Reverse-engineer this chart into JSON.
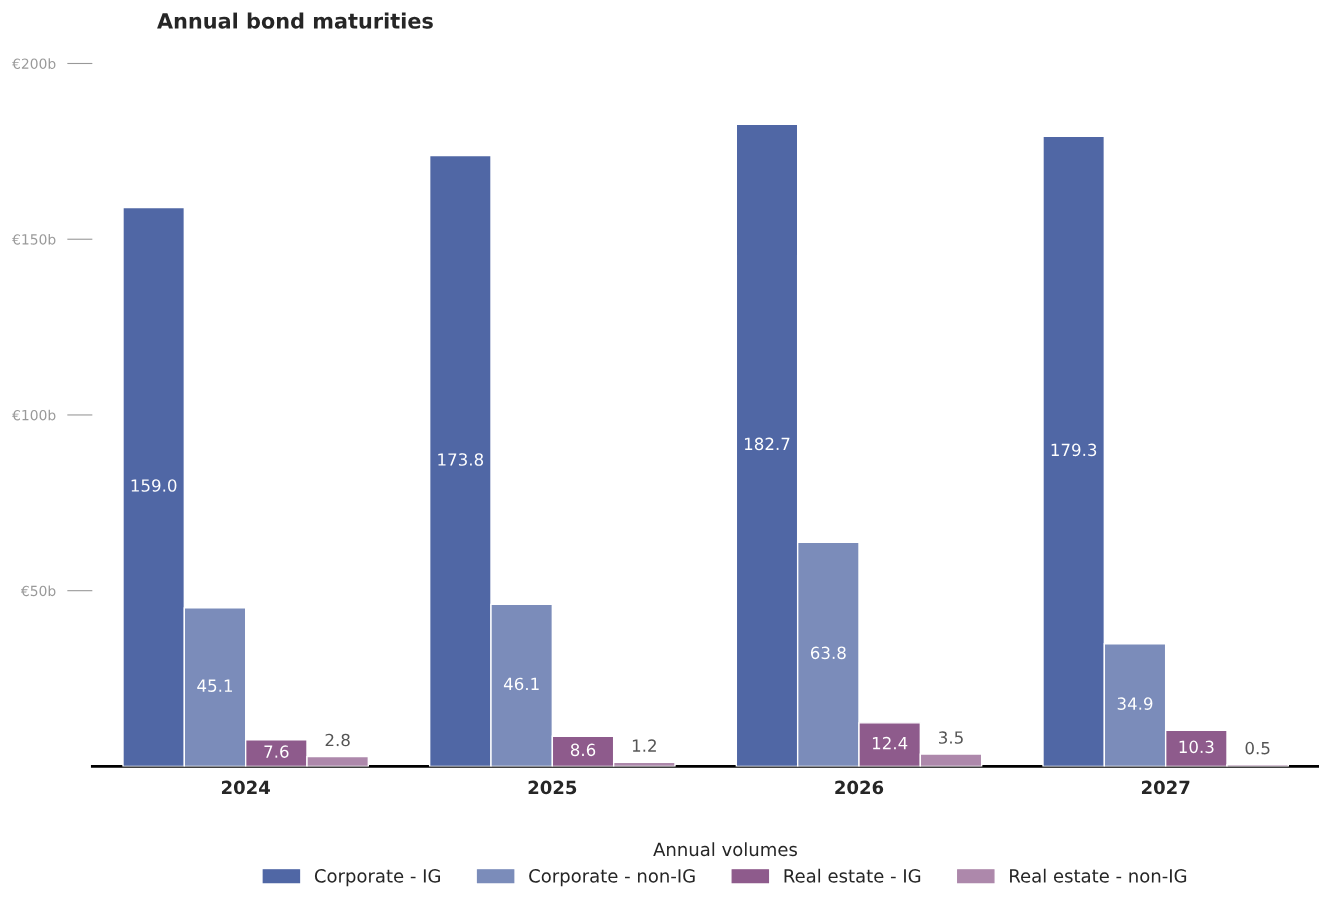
{
  "chart_data": {
    "type": "bar",
    "title": "Annual bond maturities",
    "legend_title": "Annual volumes",
    "categories": [
      "2024",
      "2025",
      "2026",
      "2027"
    ],
    "series": [
      {
        "name": "Corporate - IG",
        "color": "#5067a5",
        "values": [
          159.0,
          173.8,
          182.7,
          179.3
        ],
        "value_labels": [
          "159.0",
          "173.8",
          "182.7",
          "179.3"
        ]
      },
      {
        "name": "Corporate - non-IG",
        "color": "#7b8cba",
        "values": [
          45.1,
          46.1,
          63.8,
          34.9
        ],
        "value_labels": [
          "45.1",
          "46.1",
          "63.8",
          "34.9"
        ]
      },
      {
        "name": "Real estate - IG",
        "color": "#8e5b8c",
        "values": [
          7.6,
          8.6,
          12.4,
          10.3
        ],
        "value_labels": [
          "7.6",
          "8.6",
          "12.4",
          "10.3"
        ]
      },
      {
        "name": "Real estate - non-IG",
        "color": "#ad88ab",
        "values": [
          2.8,
          1.2,
          3.5,
          0.5
        ],
        "value_labels": [
          "2.8",
          "1.2",
          "3.5",
          "0.5"
        ]
      }
    ],
    "ylim": [
      0,
      200
    ],
    "yticks": [
      {
        "value": 50,
        "label": "€50b"
      },
      {
        "value": 100,
        "label": "€100b"
      },
      {
        "value": 150,
        "label": "€150b"
      },
      {
        "value": 200,
        "label": "€200b"
      }
    ],
    "grid": false,
    "legend": "bottom"
  }
}
